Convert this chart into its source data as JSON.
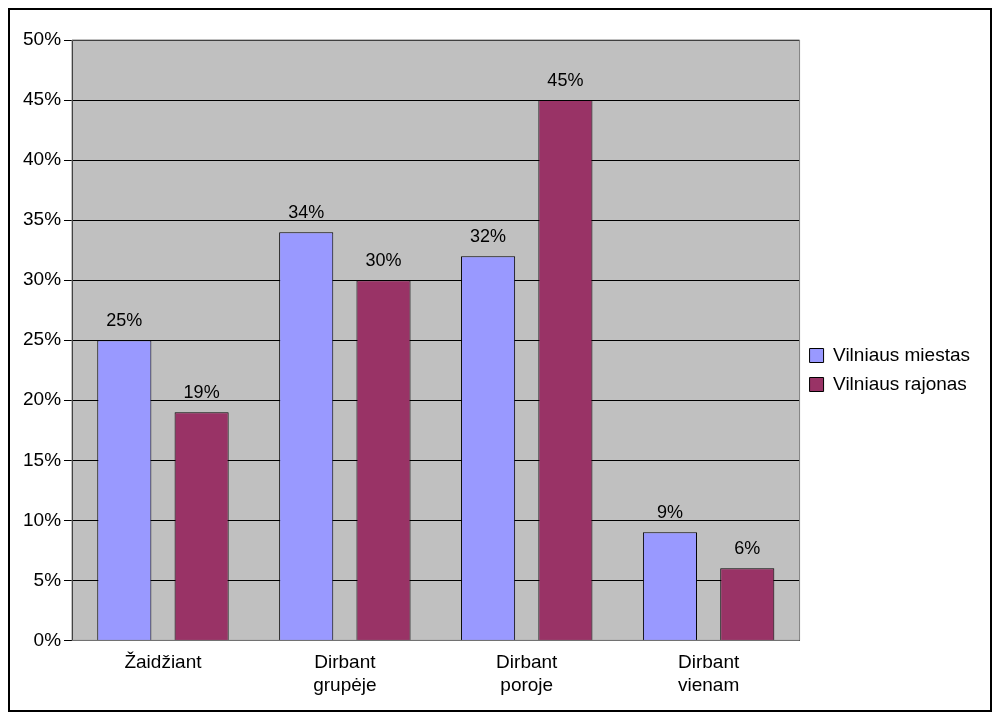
{
  "chart_data": {
    "type": "bar",
    "categories": [
      "Žaidžiant",
      "Dirbant grupėje",
      "Dirbant poroje",
      "Dirbant vienam"
    ],
    "series": [
      {
        "name": "Vilniaus miestas",
        "color": "#9999ff",
        "values": [
          25,
          34,
          32,
          9
        ],
        "value_labels": [
          "25%",
          "34%",
          "32%",
          "9%"
        ]
      },
      {
        "name": "Vilniaus rajonas",
        "color": "#993366",
        "values": [
          19,
          30,
          45,
          6
        ],
        "value_labels": [
          "19%",
          "30%",
          "45%",
          "6%"
        ]
      }
    ],
    "ylim": [
      0,
      50
    ],
    "yticks": [
      {
        "value": 0,
        "label": "0%"
      },
      {
        "value": 5,
        "label": "5%"
      },
      {
        "value": 10,
        "label": "10%"
      },
      {
        "value": 15,
        "label": "15%"
      },
      {
        "value": 20,
        "label": "20%"
      },
      {
        "value": 25,
        "label": "25%"
      },
      {
        "value": 30,
        "label": "30%"
      },
      {
        "value": 35,
        "label": "35%"
      },
      {
        "value": 40,
        "label": "40%"
      },
      {
        "value": 45,
        "label": "45%"
      },
      {
        "value": 50,
        "label": "50%"
      }
    ],
    "grid": "y",
    "legend": "right"
  }
}
